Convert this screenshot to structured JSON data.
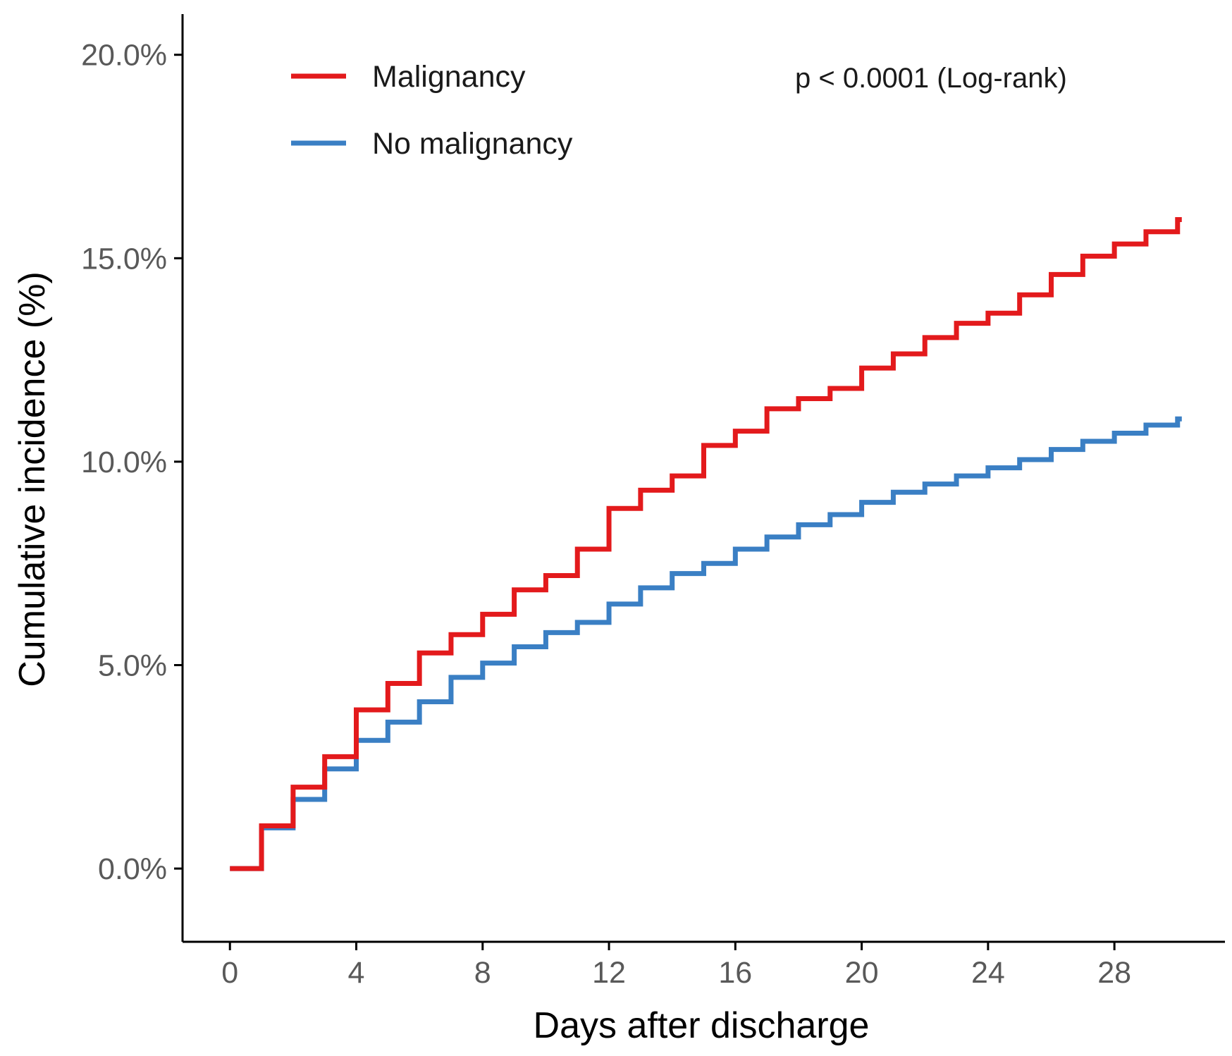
{
  "chart_data": {
    "type": "line",
    "step": true,
    "title": "",
    "xlabel": "Days after discharge",
    "ylabel": "Cumulative incidence (%)",
    "xlim": [
      -1.5,
      31.5
    ],
    "ylim": [
      -1.8,
      21.0
    ],
    "x_ticks": [
      0,
      4,
      8,
      12,
      16,
      20,
      24,
      28
    ],
    "x_tick_labels": [
      "0",
      "4",
      "8",
      "12",
      "16",
      "20",
      "24",
      "28"
    ],
    "y_ticks": [
      0,
      5,
      10,
      15,
      20
    ],
    "y_tick_labels": [
      "0.0%",
      "5.0%",
      "10.0%",
      "15.0%",
      "20.0%"
    ],
    "grid": false,
    "legend_position": "top-left",
    "annotation": "p < 0.0001 (Log-rank)",
    "series": [
      {
        "name": "Malignancy",
        "color": "#e31a1c",
        "x": [
          0,
          1,
          2,
          3,
          4,
          5,
          6,
          7,
          8,
          9,
          10,
          11,
          12,
          13,
          14,
          15,
          16,
          17,
          18,
          19,
          20,
          21,
          22,
          23,
          24,
          25,
          26,
          27,
          28,
          29,
          30
        ],
        "values": [
          0.0,
          1.05,
          2.0,
          2.75,
          3.9,
          4.55,
          5.3,
          5.75,
          6.25,
          6.85,
          7.2,
          7.85,
          8.85,
          9.3,
          9.65,
          10.4,
          10.75,
          11.3,
          11.55,
          11.8,
          12.3,
          12.65,
          13.05,
          13.4,
          13.65,
          14.1,
          14.6,
          15.05,
          15.35,
          15.65,
          15.95
        ]
      },
      {
        "name": "No malignancy",
        "color": "#3a7fc4",
        "x": [
          0,
          1,
          2,
          3,
          4,
          5,
          6,
          7,
          8,
          9,
          10,
          11,
          12,
          13,
          14,
          15,
          16,
          17,
          18,
          19,
          20,
          21,
          22,
          23,
          24,
          25,
          26,
          27,
          28,
          29,
          30
        ],
        "values": [
          0.0,
          1.0,
          1.7,
          2.45,
          3.15,
          3.6,
          4.1,
          4.7,
          5.05,
          5.45,
          5.8,
          6.05,
          6.5,
          6.9,
          7.25,
          7.5,
          7.85,
          8.15,
          8.45,
          8.7,
          9.0,
          9.25,
          9.45,
          9.65,
          9.85,
          10.05,
          10.3,
          10.5,
          10.7,
          10.9,
          11.05
        ]
      }
    ]
  }
}
